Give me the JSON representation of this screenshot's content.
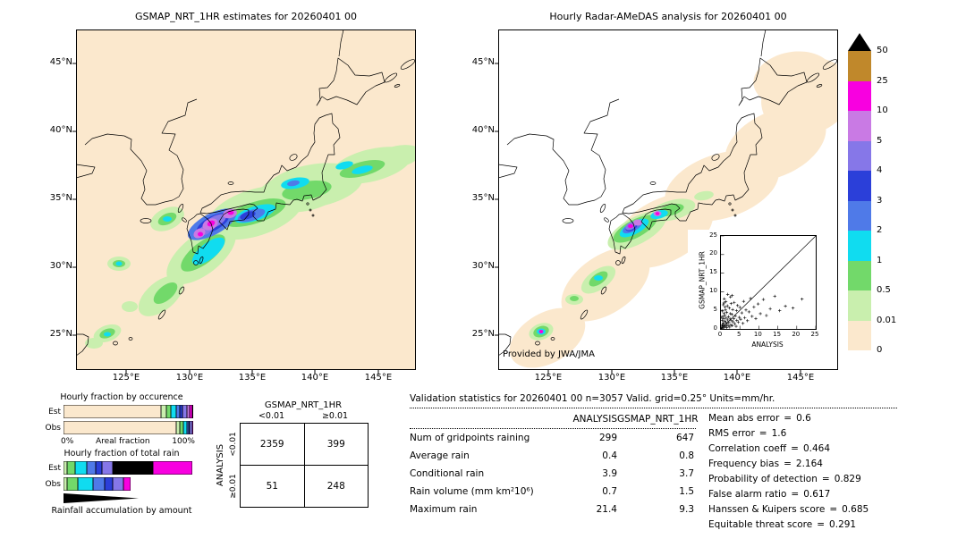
{
  "eq": "=",
  "palette": {
    "peach": "#fbe8cd",
    "palegreen": "#c9efae",
    "green": "#72d96a",
    "cyan": "#10dcf0",
    "blue": "#4f7ae8",
    "darkblue": "#2b3fd9",
    "purple": "#8677e8",
    "orchid": "#c97ae4",
    "magenta": "#f800e0",
    "brown": "#c0882b",
    "black": "#000000",
    "white": "#ffffff"
  },
  "colorbar": {
    "labels": [
      "50",
      "25",
      "10",
      "5",
      "4",
      "3",
      "2",
      "1",
      "0.5",
      "0.01",
      "0"
    ],
    "band_colors": [
      "#c0882b",
      "#f800e0",
      "#c97ae4",
      "#8677e8",
      "#2b3fd9",
      "#4f7ae8",
      "#10dcf0",
      "#72d96a",
      "#c9efae",
      "#fbe8cd"
    ],
    "overflow_color": "#000000",
    "units": "mm/hr"
  },
  "chart_data": [
    {
      "type": "heatmap",
      "name": "gsmap-precipitation-map",
      "title": "GSMAP_NRT_1HR estimates for 20260401 00",
      "units": "mm/hr",
      "lon_range": [
        121,
        148
      ],
      "lat_range": [
        22.5,
        47.5
      ],
      "x_tick_labels": [
        "125°E",
        "130°E",
        "135°E",
        "140°E",
        "145°E"
      ],
      "y_tick_labels": [
        "45°N",
        "40°N",
        "35°N",
        "30°N",
        "25°N"
      ],
      "legend_thresholds": [
        0,
        0.01,
        0.5,
        1,
        2,
        3,
        4,
        5,
        10,
        25,
        50
      ]
    },
    {
      "type": "heatmap",
      "name": "radar-amedas-map",
      "title": "Hourly Radar-AMeDAS analysis for 20260401 00",
      "units": "mm/hr",
      "lon_range": [
        121,
        148
      ],
      "lat_range": [
        22.5,
        47.5
      ],
      "x_tick_labels": [
        "125°E",
        "130°E",
        "135°E",
        "140°E",
        "145°E"
      ],
      "y_tick_labels": [
        "45°N",
        "40°N",
        "35°N",
        "30°N",
        "25°N"
      ],
      "legend_thresholds": [
        0,
        0.01,
        0.5,
        1,
        2,
        3,
        4,
        5,
        10,
        25,
        50
      ],
      "credit": "Provided by JWA/JMA"
    },
    {
      "type": "scatter",
      "name": "gsmap-vs-analysis-inset",
      "xlabel": "ANALYSIS",
      "ylabel": "GSMAP_NRT_1HR",
      "xlim": [
        0,
        25
      ],
      "ylim": [
        0,
        25
      ],
      "tick_labels": [
        "0",
        "5",
        "10",
        "15",
        "20",
        "25"
      ],
      "diagonal_line": true,
      "points": [
        [
          0.2,
          0.2
        ],
        [
          0.3,
          1.1
        ],
        [
          0.4,
          0.5
        ],
        [
          0.4,
          2.3
        ],
        [
          0.5,
          0.9
        ],
        [
          0.5,
          3.4
        ],
        [
          0.6,
          1.6
        ],
        [
          0.7,
          0.3
        ],
        [
          0.7,
          2.8
        ],
        [
          0.8,
          4.2
        ],
        [
          0.9,
          1.2
        ],
        [
          1.0,
          0.6
        ],
        [
          1.0,
          2.1
        ],
        [
          1.1,
          3.6
        ],
        [
          1.2,
          0.9
        ],
        [
          1.2,
          5.1
        ],
        [
          1.3,
          1.8
        ],
        [
          1.4,
          2.9
        ],
        [
          1.5,
          0.4
        ],
        [
          1.5,
          4.4
        ],
        [
          1.6,
          1.3
        ],
        [
          1.7,
          6.2
        ],
        [
          1.8,
          2.4
        ],
        [
          1.9,
          0.8
        ],
        [
          2.0,
          3.3
        ],
        [
          2.1,
          1.7
        ],
        [
          2.2,
          5.6
        ],
        [
          2.3,
          0.5
        ],
        [
          2.4,
          2.7
        ],
        [
          2.5,
          4.1
        ],
        [
          2.6,
          1.1
        ],
        [
          2.7,
          6.8
        ],
        [
          2.8,
          2.2
        ],
        [
          2.9,
          3.9
        ],
        [
          3.0,
          0.9
        ],
        [
          3.1,
          5.2
        ],
        [
          3.2,
          1.9
        ],
        [
          3.4,
          2.8
        ],
        [
          3.5,
          7.1
        ],
        [
          3.6,
          1.4
        ],
        [
          3.8,
          3.5
        ],
        [
          4.0,
          0.7
        ],
        [
          4.1,
          4.9
        ],
        [
          4.2,
          2.3
        ],
        [
          4.4,
          6.3
        ],
        [
          4.6,
          1.8
        ],
        [
          4.8,
          3.1
        ],
        [
          5.0,
          5.8
        ],
        [
          5.2,
          2.6
        ],
        [
          5.5,
          4.3
        ],
        [
          5.8,
          1.5
        ],
        [
          6.0,
          7.4
        ],
        [
          6.3,
          3.0
        ],
        [
          6.6,
          5.1
        ],
        [
          7.0,
          2.2
        ],
        [
          7.4,
          4.6
        ],
        [
          7.8,
          8.2
        ],
        [
          8.2,
          3.4
        ],
        [
          8.7,
          5.9
        ],
        [
          9.2,
          2.8
        ],
        [
          9.8,
          6.7
        ],
        [
          10.4,
          4.1
        ],
        [
          11.2,
          7.9
        ],
        [
          12.0,
          3.6
        ],
        [
          13.0,
          5.4
        ],
        [
          14.2,
          8.8
        ],
        [
          15.5,
          4.9
        ],
        [
          17.0,
          6.1
        ],
        [
          19.0,
          5.6
        ],
        [
          21.4,
          8.0
        ],
        [
          0.3,
          4.8
        ],
        [
          0.6,
          6.5
        ],
        [
          0.9,
          8.1
        ],
        [
          1.3,
          7.3
        ],
        [
          1.8,
          9.3
        ],
        [
          2.5,
          8.6
        ],
        [
          0.2,
          3.1
        ],
        [
          1.1,
          5.9
        ],
        [
          0.8,
          7.0
        ],
        [
          3.0,
          9.0
        ]
      ]
    },
    {
      "type": "bar",
      "name": "hourly-fraction-by-occurence",
      "title": "Hourly fraction by occurence",
      "stacked": true,
      "categories": [
        "Est",
        "Obs"
      ],
      "axis_min_label": "0%",
      "axis_title": "Areal fraction",
      "axis_max_label": "100%",
      "est_segments": [
        [
          "peach",
          75
        ],
        [
          "palegreen",
          4
        ],
        [
          "green",
          4
        ],
        [
          "cyan",
          4
        ],
        [
          "blue",
          3
        ],
        [
          "darkblue",
          2
        ],
        [
          "purple",
          3
        ],
        [
          "orchid",
          2
        ],
        [
          "magenta",
          2
        ],
        [
          "black",
          1
        ]
      ],
      "obs_segments": [
        [
          "peach",
          87
        ],
        [
          "palegreen",
          3
        ],
        [
          "green",
          2.5
        ],
        [
          "cyan",
          2.5
        ],
        [
          "blue",
          1.5
        ],
        [
          "darkblue",
          1
        ],
        [
          "purple",
          1.5
        ],
        [
          "magenta",
          1
        ]
      ]
    },
    {
      "type": "bar",
      "name": "hourly-fraction-of-total-rain",
      "title": "Hourly fraction of total rain",
      "stacked": true,
      "categories": [
        "Est",
        "Obs"
      ],
      "est_segments": [
        [
          "palegreen",
          3
        ],
        [
          "green",
          6
        ],
        [
          "cyan",
          9
        ],
        [
          "blue",
          7
        ],
        [
          "darkblue",
          5
        ],
        [
          "purple",
          8
        ],
        [
          "black",
          31
        ],
        [
          "magenta",
          30
        ]
      ],
      "obs_segments": [
        [
          "palegreen",
          3
        ],
        [
          "green",
          8
        ],
        [
          "cyan",
          12
        ],
        [
          "blue",
          9
        ],
        [
          "darkblue",
          6
        ],
        [
          "purple",
          8
        ],
        [
          "magenta",
          6
        ]
      ]
    },
    {
      "type": "table",
      "name": "contingency-table",
      "title": "GSMAP_NRT_1HR",
      "row_axis": "ANALYSIS",
      "col_labels": [
        "<0.01",
        "≥0.01"
      ],
      "row_labels": [
        "<0.01",
        "≥0.01"
      ],
      "values": [
        [
          "2359",
          "399"
        ],
        [
          "51",
          "248"
        ]
      ]
    },
    {
      "type": "table",
      "name": "validation-statistics",
      "title": "Validation statistics for 20260401 00 n=3057 Valid. grid=0.25° Units=mm/hr.",
      "columns": [
        "ANALYSIS",
        "GSMAP_NRT_1HR"
      ],
      "rows": [
        {
          "label": "Num of gridpoints raining",
          "analysis": "299",
          "gsmap": "647"
        },
        {
          "label": "Average rain",
          "analysis": "0.4",
          "gsmap": "0.8"
        },
        {
          "label": "Conditional rain",
          "analysis": "3.9",
          "gsmap": "3.7"
        },
        {
          "label": "Rain volume (mm km²10⁶)",
          "analysis": "0.7",
          "gsmap": "1.5"
        },
        {
          "label": "Maximum rain",
          "analysis": "21.4",
          "gsmap": "9.3"
        }
      ],
      "scores": [
        {
          "label": "Mean abs error",
          "value": "0.6"
        },
        {
          "label": "RMS error",
          "value": "1.6"
        },
        {
          "label": "Correlation coeff",
          "value": "0.464"
        },
        {
          "label": "Frequency bias",
          "value": "2.164"
        },
        {
          "label": "Probability of detection",
          "value": "0.829"
        },
        {
          "label": "False alarm ratio",
          "value": "0.617"
        },
        {
          "label": "Hanssen & Kuipers score",
          "value": "0.685"
        },
        {
          "label": "Equitable threat score",
          "value": "0.291"
        }
      ]
    },
    {
      "type": "area",
      "name": "rainfall-accumulation-by-amount",
      "title": "Rainfall accumulation by amount"
    }
  ]
}
